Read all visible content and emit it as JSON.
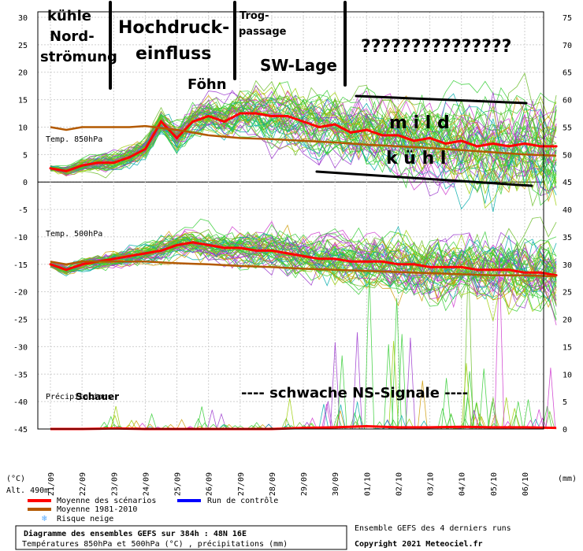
{
  "chart_data": {
    "type": "line",
    "title": "Diagramme des ensembles GEFS sur 384h : 48N 16E",
    "subtitle": "Températures 850hPa et 500hPa (°C) , précipitations (mm)",
    "right_note": "Ensemble GEFS des 4 derniers runs",
    "copyright": "Copyright 2021 Meteociel.fr",
    "left_unit": "(°C)",
    "right_unit": "(mm)",
    "altitude": "Alt. 490m",
    "left_ticks": [
      30,
      25,
      20,
      15,
      10,
      5,
      0,
      -5,
      -10,
      -15,
      -20,
      -25,
      -30,
      -35,
      -40,
      -45
    ],
    "right_ticks": [
      75,
      70,
      65,
      60,
      55,
      50,
      45,
      40,
      35,
      30,
      25,
      20,
      15,
      10,
      5,
      0
    ],
    "x_labels": [
      "21/09",
      "22/09",
      "23/09",
      "24/09",
      "25/09",
      "26/09",
      "27/09",
      "28/09",
      "29/09",
      "30/09",
      "01/10",
      "02/10",
      "03/10",
      "04/10",
      "05/10",
      "06/10"
    ],
    "panel_labels": {
      "t850": "Temp. 850hPa",
      "t500": "Temp. 500hPa",
      "precip": "Précipitations"
    },
    "legend": [
      {
        "label": "Moyenne des scénarios",
        "color": "#ff0000"
      },
      {
        "label": "Moyenne 1981-2010",
        "color": "#b35900"
      },
      {
        "label": "Run de contrôle",
        "color": "#0000ff"
      },
      {
        "label": "Risque neige",
        "color": "#55aaff"
      }
    ],
    "series": [
      {
        "name": "Moyenne des scénarios",
        "panel": "t850",
        "x": [
          0,
          0.5,
          1,
          1.5,
          2,
          2.5,
          3,
          3.5,
          4,
          4.5,
          5,
          5.5,
          6,
          6.5,
          7,
          7.5,
          8,
          8.5,
          9,
          9.5,
          10,
          10.5,
          11,
          11.5,
          12,
          12.5,
          13,
          13.5,
          14,
          14.5,
          15,
          15.5,
          16
        ],
        "values": [
          2.5,
          2,
          3,
          3.5,
          3.5,
          4.5,
          6,
          11,
          8,
          11,
          12,
          11,
          12.5,
          12.5,
          12,
          12,
          11,
          10,
          10.5,
          9,
          9.5,
          8.5,
          8.5,
          7.5,
          8,
          7,
          7.5,
          6.5,
          7,
          6.5,
          7,
          6.5,
          6.5
        ]
      },
      {
        "name": "Moyenne 1981-2010",
        "panel": "t850",
        "x": [
          0,
          0.5,
          1,
          1.5,
          2,
          2.5,
          3,
          4,
          5,
          6,
          7,
          8,
          9,
          10,
          11,
          12,
          13,
          14,
          15,
          16
        ],
        "values": [
          10,
          9.5,
          10,
          10,
          10,
          10,
          10.2,
          9.5,
          8.5,
          8,
          7.8,
          7.5,
          7.2,
          6.8,
          6.5,
          6.2,
          5.8,
          5.4,
          5,
          4.8
        ]
      },
      {
        "name": "Moyenne des scénarios",
        "panel": "t500",
        "x": [
          0,
          0.5,
          1,
          1.5,
          2,
          2.5,
          3,
          3.5,
          4,
          4.5,
          5,
          5.5,
          6,
          6.5,
          7,
          7.5,
          8,
          8.5,
          9,
          9.5,
          10,
          10.5,
          11,
          11.5,
          12,
          12.5,
          13,
          13.5,
          14,
          14.5,
          15,
          15.5,
          16
        ],
        "values": [
          -15,
          -16,
          -15,
          -14.5,
          -14,
          -13.5,
          -13,
          -12.5,
          -11.5,
          -11,
          -11.5,
          -12,
          -12,
          -12.5,
          -12.5,
          -13,
          -13.5,
          -14,
          -14,
          -14.5,
          -14.5,
          -14.5,
          -15,
          -15,
          -15.5,
          -15.5,
          -15.5,
          -16,
          -16,
          -16,
          -16.5,
          -16.5,
          -17
        ]
      },
      {
        "name": "Moyenne 1981-2010",
        "panel": "t500",
        "x": [
          0,
          0.5,
          1,
          2,
          3,
          4,
          5,
          6,
          7,
          8,
          9,
          10,
          11,
          12,
          13,
          14,
          15,
          16
        ],
        "values": [
          -14.5,
          -15,
          -14.5,
          -14.5,
          -14.5,
          -14.8,
          -15,
          -15.3,
          -15.5,
          -15.8,
          -16,
          -16.2,
          -16.4,
          -16.6,
          -16.8,
          -17,
          -17,
          -17.2
        ]
      },
      {
        "name": "Moyenne des scénarios",
        "panel": "precip",
        "x": [
          0,
          1,
          2,
          3,
          4,
          5,
          6,
          7,
          8,
          9,
          10,
          11,
          12,
          13,
          14,
          15,
          16
        ],
        "values": [
          0,
          0,
          0.1,
          0,
          0,
          0,
          0,
          0,
          0.2,
          0.3,
          0.5,
          0.3,
          0.3,
          0.4,
          0.3,
          0.3,
          0.2
        ]
      }
    ],
    "annotations": [
      "kühle",
      "Nord-",
      "strömung",
      "Hochdruck-",
      "einfluss",
      "Trog-",
      "passage",
      "SW-Lage",
      "???????????????",
      "Föhn",
      "m i l d",
      "k ü h l",
      "Schauer",
      "---- schwache NS-Signale ----"
    ]
  }
}
